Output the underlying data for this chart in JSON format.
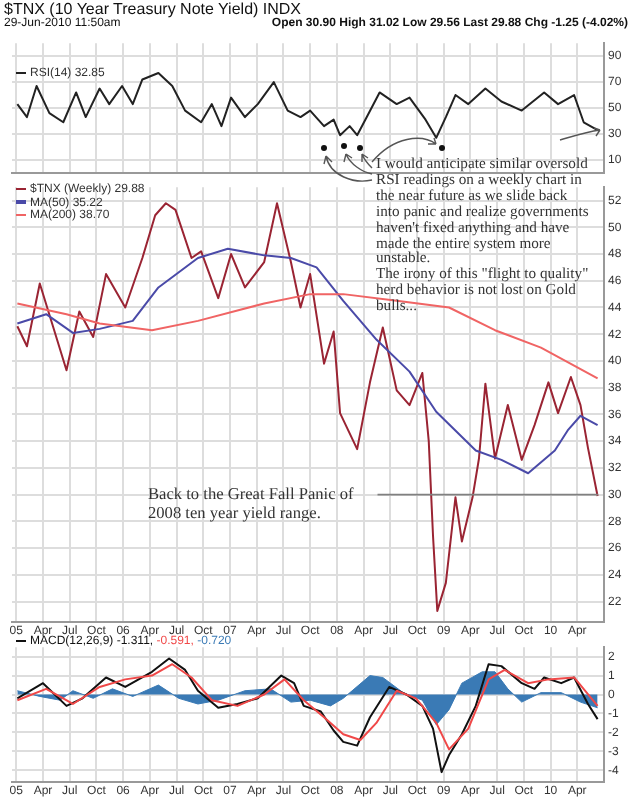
{
  "chart_data": [
    {
      "type": "line",
      "title": "$TNX (10 Year Treasury Note Yield) INDX",
      "subtitle": "29-Jun-2010 11:50am",
      "annotations": [
        "Open 30.90 High 31.02 Low 29.56 Last 29.88 Chg -1.25 (-4.02%)",
        "I would anticipate similar oversold RSI readings on a weekly chart in the near future as we slide back into panic and realize governments haven't fixed anything and have made the entire system more unstable.",
        "The irony of this \"flight to quality\" herd behavior is not lost on Gold bulls..."
      ],
      "xlim": [
        2004.96,
        2010.5
      ],
      "xticks": [
        {
          "value": 2005,
          "label": null
        },
        {
          "value": 2005.25,
          "label": null
        },
        {
          "value": 2005.5,
          "label": null
        },
        {
          "value": 2005.75,
          "label": null
        },
        {
          "value": 2006,
          "label": null
        },
        {
          "value": 2006.25,
          "label": null
        },
        {
          "value": 2006.5,
          "label": null
        },
        {
          "value": 2006.75,
          "label": null
        },
        {
          "value": 2007,
          "label": null
        },
        {
          "value": 2007.25,
          "label": null
        },
        {
          "value": 2007.5,
          "label": null
        },
        {
          "value": 2007.75,
          "label": null
        },
        {
          "value": 2008,
          "label": null
        },
        {
          "value": 2008.25,
          "label": null
        },
        {
          "value": 2008.5,
          "label": null
        },
        {
          "value": 2008.75,
          "label": null
        },
        {
          "value": 2009,
          "label": null
        },
        {
          "value": 2009.25,
          "label": null
        },
        {
          "value": 2009.5,
          "label": null
        },
        {
          "value": 2009.75,
          "label": null
        },
        {
          "value": 2010,
          "label": null
        },
        {
          "value": 2010.25,
          "label": null
        }
      ],
      "ylim": [
        0,
        100
      ],
      "yticks": [
        10,
        30,
        50,
        70,
        90
      ],
      "grid": true,
      "legend": "top left",
      "tick_labels": "y",
      "series": [
        {
          "name": "RSI(14) 32.85",
          "color": "#222222",
          "x": [
            2005.01,
            2005.1,
            2005.19,
            2005.31,
            2005.44,
            2005.56,
            2005.65,
            2005.78,
            2005.87,
            2005.99,
            2006.09,
            2006.18,
            2006.33,
            2006.46,
            2006.58,
            2006.73,
            2006.83,
            2006.92,
            2007.01,
            2007.14,
            2007.26,
            2007.41,
            2007.54,
            2007.66,
            2007.75,
            2007.88,
            2007.97,
            2008.03,
            2008.12,
            2008.19,
            2008.28,
            2008.4,
            2008.56,
            2008.68,
            2008.83,
            2008.93,
            2009.02,
            2009.11,
            2009.23,
            2009.39,
            2009.54,
            2009.73,
            2009.94,
            2010.07,
            2010.22,
            2010.31,
            2010.44
          ],
          "values": [
            53,
            43,
            67,
            46,
            39,
            62,
            43,
            65,
            53,
            67,
            53,
            72,
            77,
            67,
            48,
            39,
            53,
            36,
            58,
            43,
            53,
            70,
            48,
            43,
            48,
            36,
            41,
            29,
            36,
            29,
            43,
            62,
            53,
            58,
            41,
            27,
            43,
            60,
            53,
            65,
            55,
            48,
            62,
            53,
            60,
            39,
            33
          ]
        }
      ]
    },
    {
      "type": "line",
      "xlim": [
        2004.96,
        2010.5
      ],
      "xticks": [
        {
          "value": 2005,
          "label": "05"
        },
        {
          "value": 2005.25,
          "label": "Apr"
        },
        {
          "value": 2005.5,
          "label": "Jul"
        },
        {
          "value": 2005.75,
          "label": "Oct"
        },
        {
          "value": 2006,
          "label": "06"
        },
        {
          "value": 2006.25,
          "label": "Apr"
        },
        {
          "value": 2006.5,
          "label": "Jul"
        },
        {
          "value": 2006.75,
          "label": "Oct"
        },
        {
          "value": 2007,
          "label": "07"
        },
        {
          "value": 2007.25,
          "label": "Apr"
        },
        {
          "value": 2007.5,
          "label": "Jul"
        },
        {
          "value": 2007.75,
          "label": "Oct"
        },
        {
          "value": 2008,
          "label": "08"
        },
        {
          "value": 2008.25,
          "label": "Apr"
        },
        {
          "value": 2008.5,
          "label": "Jul"
        },
        {
          "value": 2008.75,
          "label": "Oct"
        },
        {
          "value": 2009,
          "label": "09"
        },
        {
          "value": 2009.25,
          "label": "Apr"
        },
        {
          "value": 2009.5,
          "label": "Jul"
        },
        {
          "value": 2009.75,
          "label": "Oct"
        },
        {
          "value": 2010,
          "label": "10"
        },
        {
          "value": 2010.25,
          "label": "Apr"
        }
      ],
      "ylim": [
        20.5,
        53
      ],
      "yticks": [
        22,
        24,
        26,
        28,
        30,
        32,
        34,
        36,
        38,
        40,
        42,
        44,
        46,
        48,
        50,
        52
      ],
      "grid": true,
      "legend": "top left",
      "ref_lines": [
        {
          "axis": "y",
          "value": 30,
          "label": "Back to the Great Fall Panic of 2008 ten year yield range.",
          "color": "#808080"
        }
      ],
      "series": [
        {
          "name": "$TNX (Weekly) 29.88",
          "color": "#9a2433",
          "x": [
            2005.01,
            2005.1,
            2005.22,
            2005.47,
            2005.59,
            2005.72,
            2005.84,
            2006.02,
            2006.18,
            2006.3,
            2006.4,
            2006.49,
            2006.64,
            2006.73,
            2006.89,
            2007.01,
            2007.14,
            2007.32,
            2007.44,
            2007.57,
            2007.66,
            2007.75,
            2007.88,
            2007.97,
            2008.03,
            2008.19,
            2008.31,
            2008.43,
            2008.56,
            2008.68,
            2008.8,
            2008.86,
            2008.9,
            2008.94,
            2009.02,
            2009.11,
            2009.17,
            2009.27,
            2009.33,
            2009.39,
            2009.48,
            2009.6,
            2009.73,
            2009.85,
            2009.98,
            2010.07,
            2010.19,
            2010.28,
            2010.35,
            2010.44
          ],
          "values": [
            42.6,
            41.1,
            45.8,
            39.3,
            43.7,
            41.8,
            46.5,
            44,
            47.7,
            50.9,
            51.8,
            51.3,
            47.7,
            48.2,
            44.7,
            48,
            45.5,
            47.4,
            51.8,
            47.4,
            44,
            46.5,
            39.8,
            42.2,
            36.1,
            33.4,
            38.4,
            42.5,
            37.8,
            36.7,
            39.1,
            34,
            26.9,
            21.3,
            23.4,
            29.8,
            26.5,
            29.8,
            32.7,
            38.3,
            32.7,
            36.7,
            32.6,
            35.2,
            38.4,
            36.1,
            38.8,
            36.7,
            33.5,
            29.9
          ]
        },
        {
          "name": "MA(50) 35.22",
          "color": "#4a4aa8",
          "x": [
            2005.01,
            2005.28,
            2005.53,
            2005.78,
            2006.09,
            2006.33,
            2006.7,
            2006.98,
            2007.32,
            2007.57,
            2007.81,
            2008.06,
            2008.37,
            2008.68,
            2008.93,
            2009.3,
            2009.54,
            2009.79,
            2010.04,
            2010.16,
            2010.28,
            2010.44
          ],
          "values": [
            42.8,
            43.5,
            42.1,
            42.4,
            43,
            45.5,
            47.7,
            48.4,
            47.9,
            47.7,
            47,
            44.5,
            41.6,
            39.2,
            36.2,
            33.3,
            32.6,
            31.6,
            33.3,
            34.8,
            35.9,
            35.2
          ]
        },
        {
          "name": "MA(200) 38.70",
          "color": "#f06464",
          "x": [
            2005.01,
            2005.47,
            2005.78,
            2006.27,
            2006.7,
            2007.32,
            2007.75,
            2008.06,
            2008.56,
            2009.05,
            2009.48,
            2009.91,
            2010.44
          ],
          "values": [
            44.3,
            43.5,
            42.8,
            42.3,
            43,
            44.3,
            45,
            45,
            44.5,
            44,
            42.3,
            41,
            38.7
          ]
        }
      ]
    },
    {
      "type": "line",
      "xlim": [
        2004.96,
        2010.5
      ],
      "xticks": [
        {
          "value": 2005,
          "label": "05"
        },
        {
          "value": 2005.25,
          "label": "Apr"
        },
        {
          "value": 2005.5,
          "label": "Jul"
        },
        {
          "value": 2005.75,
          "label": "Oct"
        },
        {
          "value": 2006,
          "label": "06"
        },
        {
          "value": 2006.25,
          "label": "Apr"
        },
        {
          "value": 2006.5,
          "label": "Jul"
        },
        {
          "value": 2006.75,
          "label": "Oct"
        },
        {
          "value": 2007,
          "label": "07"
        },
        {
          "value": 2007.25,
          "label": "Apr"
        },
        {
          "value": 2007.5,
          "label": "Jul"
        },
        {
          "value": 2007.75,
          "label": "Oct"
        },
        {
          "value": 2008,
          "label": "08"
        },
        {
          "value": 2008.25,
          "label": "Apr"
        },
        {
          "value": 2008.5,
          "label": "Jul"
        },
        {
          "value": 2008.75,
          "label": "Oct"
        },
        {
          "value": 2009,
          "label": "09"
        },
        {
          "value": 2009.25,
          "label": "Apr"
        },
        {
          "value": 2009.5,
          "label": "Jul"
        },
        {
          "value": 2009.75,
          "label": "Oct"
        },
        {
          "value": 2010,
          "label": "10"
        },
        {
          "value": 2010.25,
          "label": "Apr"
        }
      ],
      "ylim": [
        -4.6,
        2.5
      ],
      "yticks": [
        -4,
        -3,
        -2,
        -1,
        0,
        1,
        2
      ],
      "grid": true,
      "legend": "top left",
      "series": [
        {
          "name": "-0.720",
          "type": "area",
          "color": "#3a7ab5",
          "x": [
            2005.01,
            2005.22,
            2005.41,
            2005.53,
            2005.72,
            2005.9,
            2006.09,
            2006.33,
            2006.52,
            2006.7,
            2006.89,
            2007.14,
            2007.38,
            2007.57,
            2007.75,
            2007.94,
            2008.06,
            2008.31,
            2008.43,
            2008.62,
            2008.8,
            2008.86,
            2008.93,
            2009.05,
            2009.17,
            2009.36,
            2009.48,
            2009.6,
            2009.73,
            2009.91,
            2010.1,
            2010.28,
            2010.44
          ],
          "values": [
            0.2,
            -0.1,
            -0.3,
            0.2,
            -0.2,
            0.3,
            -0.1,
            0.5,
            -0.2,
            -0.5,
            -0.3,
            0.2,
            0.3,
            -0.4,
            -0.3,
            -0.6,
            -0.2,
            1.0,
            0.9,
            0.1,
            -0.3,
            -0.9,
            -1.6,
            -0.8,
            0.6,
            1.2,
            1.2,
            0.3,
            -0.4,
            0.1,
            0.1,
            -0.4,
            -0.7
          ]
        },
        {
          "name": "MACD(12,26,9) -1.311,",
          "color": "#111111",
          "x": [
            2005.01,
            2005.25,
            2005.47,
            2005.62,
            2005.84,
            2006.02,
            2006.27,
            2006.43,
            2006.58,
            2006.7,
            2006.89,
            2007.07,
            2007.26,
            2007.48,
            2007.6,
            2007.69,
            2007.85,
            2007.97,
            2008.06,
            2008.19,
            2008.31,
            2008.49,
            2008.65,
            2008.8,
            2008.9,
            2008.98,
            2009.05,
            2009.17,
            2009.3,
            2009.42,
            2009.54,
            2009.73,
            2009.85,
            2009.94,
            2010.1,
            2010.22,
            2010.35,
            2010.44
          ],
          "values": [
            -0.2,
            0.6,
            -0.6,
            -0.2,
            0.9,
            0.4,
            1.2,
            1.9,
            1.3,
            0.2,
            -0.7,
            -0.5,
            -0.2,
            1.0,
            0.6,
            -0.6,
            -0.9,
            -1.9,
            -2.5,
            -2.7,
            -1.2,
            0.4,
            0,
            -0.6,
            -1.8,
            -4.1,
            -3.2,
            -2.1,
            -0.6,
            1.6,
            1.5,
            0.6,
            0.3,
            0.9,
            0.6,
            0.9,
            -0.5,
            -1.3
          ]
        },
        {
          "name": "-0.591,",
          "color": "#f04848",
          "x": [
            2005.01,
            2005.28,
            2005.53,
            2005.78,
            2006.02,
            2006.27,
            2006.46,
            2006.64,
            2006.83,
            2007.07,
            2007.32,
            2007.51,
            2007.69,
            2007.88,
            2008.06,
            2008.22,
            2008.37,
            2008.56,
            2008.74,
            2008.93,
            2009.05,
            2009.23,
            2009.42,
            2009.57,
            2009.79,
            2009.98,
            2010.22,
            2010.44
          ],
          "values": [
            -0.3,
            0.3,
            -0.5,
            0.4,
            0.8,
            1.0,
            1.6,
            0.9,
            -0.3,
            -0.6,
            0,
            0.8,
            -0.3,
            -1.2,
            -2.1,
            -2.4,
            -1.5,
            0.2,
            -0.2,
            -1.5,
            -2.9,
            -1.8,
            0.8,
            1.3,
            0.6,
            0.8,
            0.9,
            -0.6
          ]
        }
      ]
    }
  ]
}
